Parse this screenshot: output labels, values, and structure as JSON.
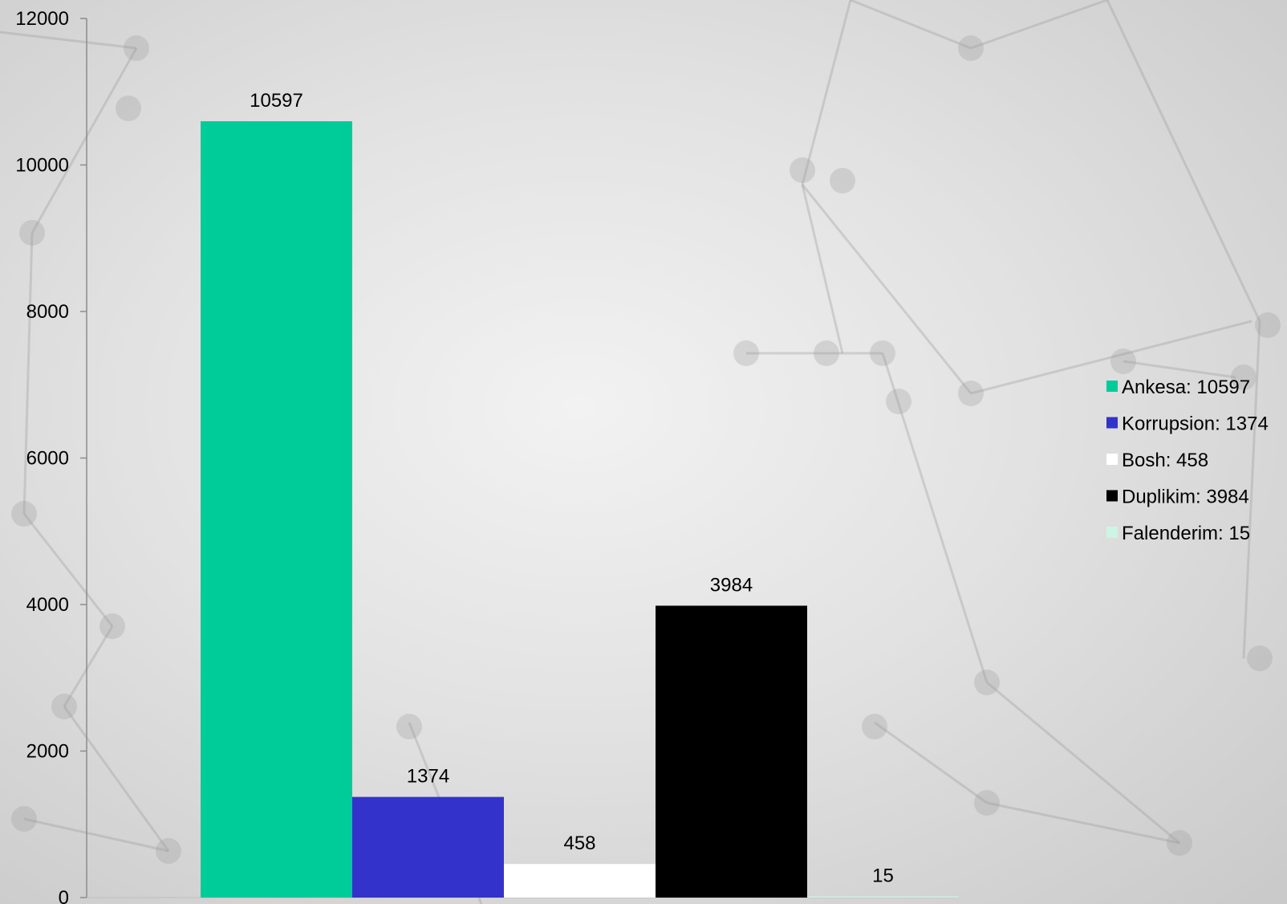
{
  "chart_data": {
    "type": "bar",
    "title": "",
    "xlabel": "",
    "ylabel": "",
    "ylim": [
      0,
      12000
    ],
    "yticks": [
      0,
      2000,
      4000,
      6000,
      8000,
      10000,
      12000
    ],
    "grid": false,
    "legend_position": "right",
    "categories": [
      "Ankesa",
      "Korrupsion",
      "Bosh",
      "Duplikim",
      "Falenderim"
    ],
    "values": [
      10597,
      1374,
      458,
      3984,
      15
    ],
    "colors": [
      "#00cc99",
      "#3333cc",
      "#ffffff",
      "#000000",
      "#ccf5e6"
    ],
    "data_labels": [
      "10597",
      "1374",
      "458",
      "3984",
      "15"
    ],
    "legend": [
      "Ankesa: 10597",
      "Korrupsion: 1374",
      "Bosh: 458",
      "Duplikim: 3984",
      "Falenderim: 15"
    ]
  }
}
